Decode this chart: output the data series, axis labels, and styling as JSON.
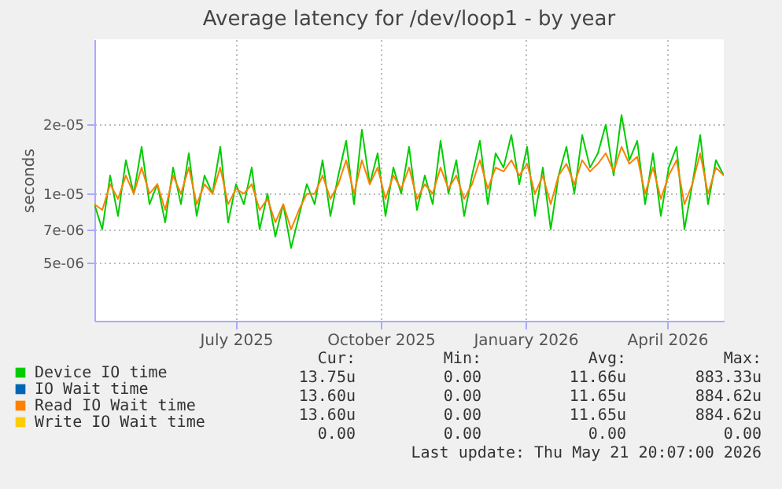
{
  "chart_data": {
    "type": "line",
    "title": "Average latency for /dev/loop1 - by year",
    "ylabel": "seconds",
    "log": true,
    "grid": true,
    "legend": "bottom",
    "xlim": [
      "2025-04-16",
      "2026-05-21"
    ],
    "xticks": [
      {
        "value": "2025-07-15",
        "label": "July 2025"
      },
      {
        "value": "2025-10-15",
        "label": "October 2025"
      },
      {
        "value": "2026-01-15",
        "label": "January 2026"
      },
      {
        "value": "2026-04-15",
        "label": "April 2026"
      }
    ],
    "ylim": [
      2.8e-06,
      4.7e-05
    ],
    "yticks": [
      {
        "value": 5e-06,
        "label": "5e-06"
      },
      {
        "value": 7e-06,
        "label": "7e-06"
      },
      {
        "value": 1e-05,
        "label": "1e-05"
      },
      {
        "value": 2e-05,
        "label": "2e-05"
      }
    ],
    "x": [
      "2025-04-16",
      "2025-04-21",
      "2025-04-26",
      "2025-05-01",
      "2025-05-06",
      "2025-05-11",
      "2025-05-16",
      "2025-05-21",
      "2025-05-26",
      "2025-05-31",
      "2025-06-05",
      "2025-06-10",
      "2025-06-15",
      "2025-06-20",
      "2025-06-25",
      "2025-06-30",
      "2025-07-05",
      "2025-07-10",
      "2025-07-15",
      "2025-07-20",
      "2025-07-25",
      "2025-07-30",
      "2025-08-04",
      "2025-08-09",
      "2025-08-14",
      "2025-08-19",
      "2025-08-24",
      "2025-08-29",
      "2025-09-03",
      "2025-09-08",
      "2025-09-13",
      "2025-09-18",
      "2025-09-23",
      "2025-09-28",
      "2025-10-03",
      "2025-10-08",
      "2025-10-13",
      "2025-10-18",
      "2025-10-23",
      "2025-10-28",
      "2025-11-02",
      "2025-11-07",
      "2025-11-12",
      "2025-11-17",
      "2025-11-22",
      "2025-11-27",
      "2025-12-02",
      "2025-12-07",
      "2025-12-12",
      "2025-12-17",
      "2025-12-22",
      "2025-12-27",
      "2026-01-01",
      "2026-01-06",
      "2026-01-11",
      "2026-01-16",
      "2026-01-21",
      "2026-01-26",
      "2026-01-31",
      "2026-02-05",
      "2026-02-10",
      "2026-02-15",
      "2026-02-20",
      "2026-02-25",
      "2026-03-02",
      "2026-03-07",
      "2026-03-12",
      "2026-03-17",
      "2026-03-22",
      "2026-03-27",
      "2026-04-01",
      "2026-04-06",
      "2026-04-11",
      "2026-04-16",
      "2026-04-21",
      "2026-04-26",
      "2026-05-01",
      "2026-05-06",
      "2026-05-11",
      "2026-05-16",
      "2026-05-21"
    ],
    "series": [
      {
        "name": "Device IO time",
        "color": "#00cc00",
        "values": [
          9e-06,
          7e-06,
          1.2e-05,
          8e-06,
          1.4e-05,
          1e-05,
          1.6e-05,
          9e-06,
          1.1e-05,
          7.5e-06,
          1.3e-05,
          9e-06,
          1.5e-05,
          8e-06,
          1.2e-05,
          1e-05,
          1.6e-05,
          7.5e-06,
          1.1e-05,
          9e-06,
          1.3e-05,
          7e-06,
          1e-05,
          6.5e-06,
          9e-06,
          5.8e-06,
          8e-06,
          1.1e-05,
          9e-06,
          1.4e-05,
          8e-06,
          1.2e-05,
          1.7e-05,
          9e-06,
          1.9e-05,
          1.1e-05,
          1.5e-05,
          8e-06,
          1.3e-05,
          1e-05,
          1.6e-05,
          8.5e-06,
          1.2e-05,
          9e-06,
          1.7e-05,
          1e-05,
          1.4e-05,
          8e-06,
          1.2e-05,
          1.7e-05,
          9e-06,
          1.5e-05,
          1.3e-05,
          1.8e-05,
          1.1e-05,
          1.6e-05,
          8e-06,
          1.3e-05,
          7e-06,
          1.2e-05,
          1.6e-05,
          1e-05,
          1.8e-05,
          1.3e-05,
          1.5e-05,
          2e-05,
          1.2e-05,
          2.2e-05,
          1.4e-05,
          1.7e-05,
          9e-06,
          1.5e-05,
          8e-06,
          1.3e-05,
          1.6e-05,
          7e-06,
          1.1e-05,
          1.8e-05,
          9e-06,
          1.4e-05,
          1.2e-05
        ]
      },
      {
        "name": "IO Wait time",
        "color": "#0066b3",
        "values": [
          null,
          null,
          null,
          null,
          null,
          null,
          null,
          null,
          null,
          null,
          null,
          null,
          null,
          null,
          null,
          null,
          null,
          null,
          null,
          null,
          null,
          null,
          null,
          null,
          null,
          null,
          null,
          null,
          null,
          null,
          null,
          null,
          null,
          null,
          null,
          null,
          null,
          null,
          null,
          null,
          null,
          null,
          null,
          null,
          null,
          null,
          null,
          null,
          null,
          null,
          null,
          null,
          null,
          null,
          null,
          null,
          null,
          null,
          null,
          null,
          null,
          null,
          null,
          null,
          null,
          null,
          null,
          null,
          null,
          null,
          null,
          null,
          null,
          null,
          null,
          null,
          null,
          null,
          null,
          null,
          null
        ]
      },
      {
        "name": "Read IO Wait time",
        "color": "#ff8000",
        "values": [
          9e-06,
          8.5e-06,
          1.1e-05,
          9.5e-06,
          1.2e-05,
          1e-05,
          1.3e-05,
          1e-05,
          1.1e-05,
          8.5e-06,
          1.2e-05,
          1e-05,
          1.3e-05,
          9e-06,
          1.1e-05,
          1e-05,
          1.3e-05,
          9e-06,
          1.05e-05,
          1e-05,
          1.1e-05,
          8.5e-06,
          9.5e-06,
          7.5e-06,
          9e-06,
          7e-06,
          8.5e-06,
          1e-05,
          1e-05,
          1.2e-05,
          9.5e-06,
          1.1e-05,
          1.4e-05,
          1e-05,
          1.4e-05,
          1.1e-05,
          1.3e-05,
          9.5e-06,
          1.2e-05,
          1.05e-05,
          1.3e-05,
          9.5e-06,
          1.1e-05,
          1e-05,
          1.3e-05,
          1.05e-05,
          1.2e-05,
          9.5e-06,
          1.1e-05,
          1.4e-05,
          1.05e-05,
          1.3e-05,
          1.25e-05,
          1.4e-05,
          1.2e-05,
          1.35e-05,
          1e-05,
          1.2e-05,
          9e-06,
          1.2e-05,
          1.35e-05,
          1.1e-05,
          1.4e-05,
          1.25e-05,
          1.35e-05,
          1.5e-05,
          1.25e-05,
          1.6e-05,
          1.35e-05,
          1.45e-05,
          1e-05,
          1.3e-05,
          9.5e-06,
          1.2e-05,
          1.4e-05,
          9e-06,
          1.1e-05,
          1.5e-05,
          1e-05,
          1.3e-05,
          1.2e-05
        ]
      },
      {
        "name": "Write IO Wait time",
        "color": "#ffcc00",
        "values": [
          null,
          null,
          null,
          null,
          null,
          null,
          null,
          null,
          null,
          null,
          null,
          null,
          null,
          null,
          null,
          null,
          null,
          null,
          null,
          null,
          null,
          null,
          null,
          null,
          null,
          null,
          null,
          null,
          null,
          null,
          null,
          null,
          null,
          null,
          null,
          null,
          null,
          null,
          null,
          null,
          null,
          null,
          null,
          null,
          null,
          null,
          null,
          null,
          null,
          null,
          null,
          null,
          null,
          null,
          null,
          null,
          null,
          null,
          null,
          null,
          null,
          null,
          null,
          null,
          null,
          null,
          null,
          null,
          null,
          null,
          null,
          null,
          null,
          null,
          null,
          null,
          null,
          null,
          null,
          null,
          null
        ]
      }
    ],
    "annotations": [
      "Cur:",
      "Min:",
      "Avg:",
      "Max:",
      "13.75u",
      "0.00",
      "11.66u",
      "883.33u",
      "13.60u",
      "0.00",
      "11.65u",
      "884.62u",
      "13.60u",
      "0.00",
      "11.65u",
      "884.62u",
      "0.00",
      "0.00",
      "0.00",
      "0.00",
      "Last update: Thu May 21 20:07:00 2026"
    ]
  }
}
